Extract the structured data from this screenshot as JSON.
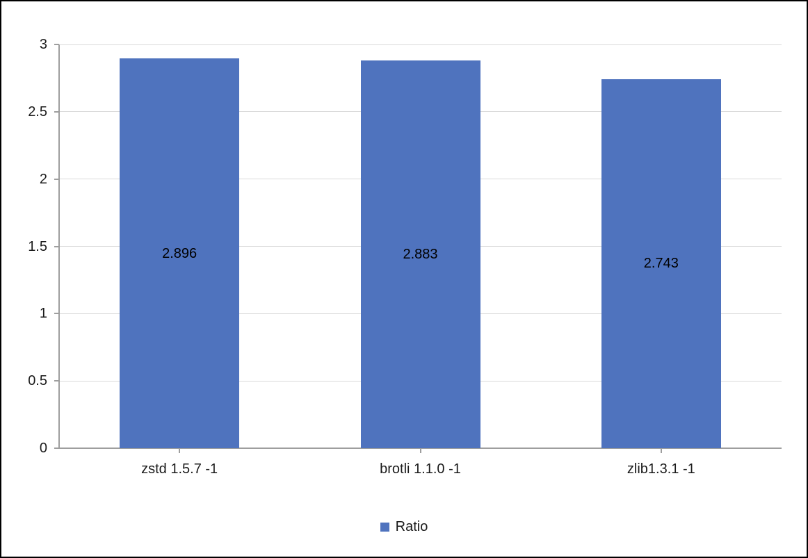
{
  "chart_data": {
    "type": "bar",
    "title": "",
    "categories": [
      "zstd 1.5.7 -1",
      "brotli 1.1.0 -1",
      "zlib1.3.1 -1"
    ],
    "series": [
      {
        "name": "Ratio",
        "values": [
          2.896,
          2.883,
          2.743
        ]
      }
    ],
    "data_labels": [
      "2.896",
      "2.883",
      "2.743"
    ],
    "data_label_position": "center",
    "xlabel": "",
    "ylabel": "",
    "ylim": [
      0,
      3
    ],
    "yticks": [
      "0",
      "0.5",
      "1",
      "1.5",
      "2",
      "2.5",
      "3"
    ],
    "grid": true,
    "legend_position": "bottom",
    "colors": {
      "bar": "#4F73BE",
      "gridline": "#D9D9D9",
      "axis": "#9E9E9E",
      "tick": "#9E9E9E",
      "text": "#1b1b1b",
      "data_label": "#000000",
      "frame": "#000000",
      "background": "#ffffff"
    }
  },
  "legend": {
    "label": "Ratio"
  }
}
